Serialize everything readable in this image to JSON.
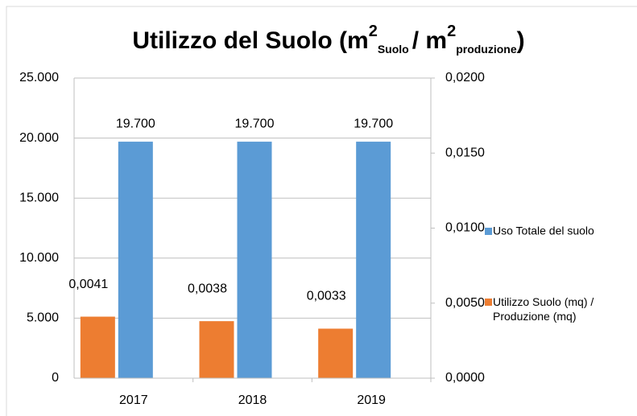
{
  "chart_data": {
    "type": "bar",
    "title": [
      "Utilizzo del Suolo (m",
      "2",
      "Suolo",
      "/ m",
      "2",
      "produzione",
      ")"
    ],
    "categories": [
      "2017",
      "2018",
      "2019"
    ],
    "series": [
      {
        "name": "Utilizzo Suolo (mq) / Produzione (mq)",
        "color": "#ed7d31",
        "axis": "y2",
        "values": [
          0.0041,
          0.0038,
          0.0033
        ],
        "value_labels": [
          "0,0041",
          "0,0038",
          "0,0033"
        ]
      },
      {
        "name": "Uso Totale del suolo",
        "color": "#5b9bd5",
        "values": [
          19700,
          19700,
          19700
        ],
        "value_labels": [
          "19.700",
          "19.700",
          "19.700"
        ]
      }
    ],
    "ylim": [
      0,
      25000
    ],
    "yticks": [
      0,
      {
        "value": 5000,
        "label": "5.000"
      },
      {
        "value": 10000,
        "label": "10.000"
      },
      {
        "value": 15000,
        "label": "15.000"
      },
      {
        "value": 20000,
        "label": "20.000"
      },
      {
        "value": 25000,
        "label": "25.000"
      }
    ],
    "y2lim": [
      0,
      0.02
    ],
    "y2ticks": [
      {
        "value": 0,
        "label": "0,0000"
      },
      {
        "value": 0.005,
        "label": "0,0050"
      },
      {
        "value": 0.01,
        "label": "0,0100"
      },
      {
        "value": 0.015,
        "label": "0,0150"
      },
      {
        "value": 0.02,
        "label": "0,0200"
      }
    ],
    "grid": true
  }
}
